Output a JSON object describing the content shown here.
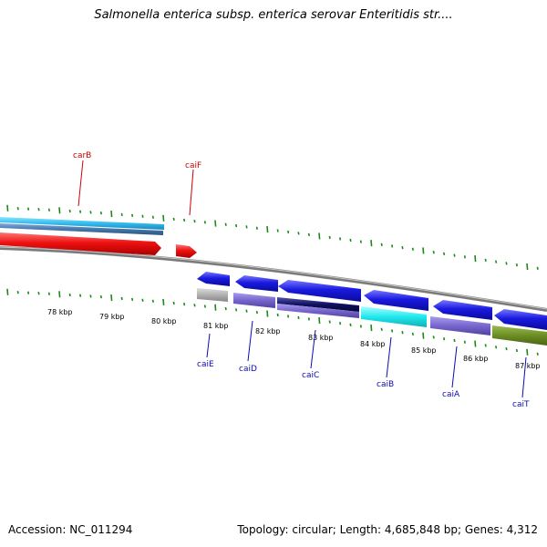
{
  "title": "Salmonella enterica subsp. enterica serovar Enteritidis str....",
  "accession_line": "Accession: NC_011294",
  "topology_line": "Topology: circular; Length: 4,685,848 bp; Genes: 4,312",
  "colors": {
    "backbone": "#7a7a7a",
    "tick": "#1a8a1a",
    "forward_label": "#cc0000",
    "reverse_label": "#0a0ab0",
    "red_gene": "#ee1111",
    "blue_gene": "#1a1ae0",
    "gray_gene": "#b0b0b0",
    "purple_gene": "#7766cc",
    "navy_gene": "#101060",
    "cyan_gene": "#20e8ee",
    "olive_gene": "#6b8e23",
    "lightblue_gene": "#33bbee",
    "steel_gene": "#4477aa"
  },
  "scale_labels": [
    "78 kbp",
    "79 kbp",
    "80 kbp",
    "81 kbp",
    "82 kbp",
    "83 kbp",
    "84 kbp",
    "85 kbp",
    "86 kbp",
    "87 kbp"
  ],
  "forward_labels": [
    "carB",
    "caiF"
  ],
  "reverse_labels": [
    "caiE",
    "caiD",
    "caiC",
    "caiB",
    "caiA",
    "caiT"
  ]
}
